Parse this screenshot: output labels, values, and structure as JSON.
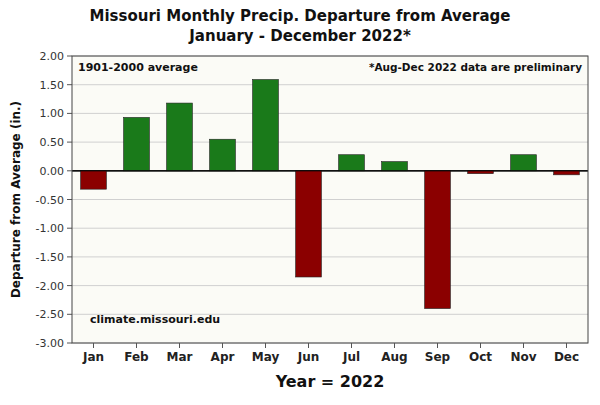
{
  "chart_data": {
    "type": "bar",
    "title": "Missouri Monthly Precip. Departure from Average",
    "subtitle": "January - December 2022*",
    "categories": [
      "Jan",
      "Feb",
      "Mar",
      "Apr",
      "May",
      "Jun",
      "Jul",
      "Aug",
      "Sep",
      "Oct",
      "Nov",
      "Dec"
    ],
    "values": [
      -0.32,
      0.93,
      1.18,
      0.55,
      1.59,
      -1.85,
      0.28,
      0.16,
      -2.4,
      -0.05,
      0.28,
      -0.07
    ],
    "colors": [
      "#8B0000",
      "#1a7a1a",
      "#1a7a1a",
      "#1a7a1a",
      "#1a7a1a",
      "#8B0000",
      "#1a7a1a",
      "#1a7a1a",
      "#8B0000",
      "#8B0000",
      "#1a7a1a",
      "#8B0000"
    ],
    "x_label": "Year = 2022",
    "y_label": "Departure from Average (in.)",
    "ylim": [
      -3.0,
      2.0
    ],
    "yticks": [
      {
        "value": -3.0,
        "label": "-3.00"
      },
      {
        "value": -2.5,
        "label": "-2.50"
      },
      {
        "value": -2.0,
        "label": "-2.00"
      },
      {
        "value": -1.5,
        "label": "-1.50"
      },
      {
        "value": -1.0,
        "label": "-1.00"
      },
      {
        "value": -0.5,
        "label": "-0.50"
      },
      {
        "value": 0.0,
        "label": "0.00"
      },
      {
        "value": 0.5,
        "label": "0.50"
      },
      {
        "value": 1.0,
        "label": "1.00"
      },
      {
        "value": 1.5,
        "label": "1.50"
      },
      {
        "value": 2.0,
        "label": "2.00"
      }
    ],
    "grid": true,
    "annotations": [
      "1901-2000 average",
      "*Aug-Dec 2022 data are preliminary",
      "climate.missouri.edu"
    ]
  }
}
